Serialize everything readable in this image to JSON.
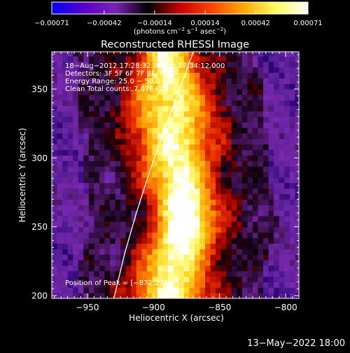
{
  "chart_data": {
    "type": "heatmap",
    "title": "Reconstructed RHESSI Image",
    "xlabel": "Heliocentric X (arcsec)",
    "ylabel": "Heliocentric Y (arcsec)",
    "xlim": [
      -977,
      -790
    ],
    "ylim": [
      198,
      377
    ],
    "x_ticks": [
      -950,
      -900,
      -850,
      -800
    ],
    "x_tick_labels": [
      "−950",
      "−900",
      "−850",
      "−800"
    ],
    "y_ticks": [
      200,
      250,
      300,
      350
    ],
    "y_tick_labels": [
      "200",
      "250",
      "300",
      "350"
    ],
    "colorbar": {
      "range": [
        -0.00071,
        0.00071
      ],
      "ticks": [
        -0.00071,
        -0.00042,
        -0.00014,
        0.00014,
        0.00042,
        0.00071
      ],
      "tick_labels": [
        "−0.00071",
        "−0.00042",
        "−0.00014",
        "0.00014",
        "0.00042",
        "0.00071"
      ],
      "units_prefix": "(photons cm",
      "units_exp1": "−2",
      "units_mid1": " s",
      "units_exp2": "−1",
      "units_mid2": " asec",
      "units_exp3": "−2",
      "units_suffix": ")",
      "colors": [
        "#0000ff",
        "#5a00c8",
        "#7a22b4",
        "#000000",
        "#c80000",
        "#ff4400",
        "#ffaa00",
        "#ffff60",
        "#ffffff"
      ]
    },
    "annotations": [
      "18−Aug−2012 17:28:32.000 to 17:34:12.000",
      "Detectors: 3F 5F 6F 7F 8F, Att 0",
      "Energy Range: 25.0 − 50.0 keV",
      "Clean     Total counts: 7.07E+03"
    ],
    "peak_label": "Position of Peak = [−872,252]",
    "peak": [
      -872,
      252
    ],
    "limb_curve": [
      [
        -930,
        198
      ],
      [
        -922,
        230
      ],
      [
        -913,
        260
      ],
      [
        -903,
        290
      ],
      [
        -892,
        320
      ],
      [
        -882,
        345
      ],
      [
        -870,
        377
      ]
    ],
    "emission_ridge": [
      [
        -890,
        198
      ],
      [
        -887,
        225
      ],
      [
        -878,
        252
      ],
      [
        -885,
        290
      ],
      [
        -888,
        330
      ],
      [
        -892,
        377
      ]
    ],
    "grid": false
  },
  "footer": {
    "timestamp": "13−May−2022 18:00"
  }
}
